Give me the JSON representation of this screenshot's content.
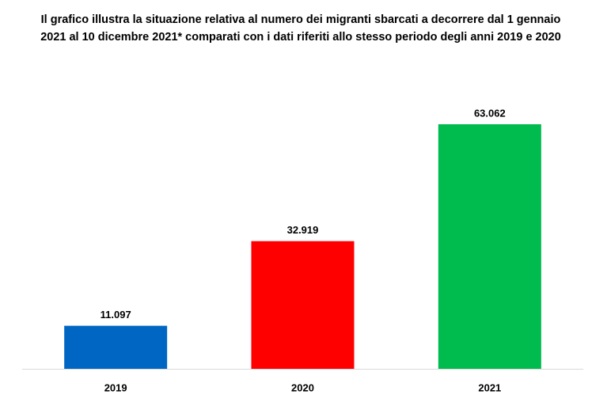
{
  "chart_data": {
    "type": "bar",
    "title": "Il grafico illustra la situazione relativa al numero dei migranti sbarcati a decorrere dal 1 gennaio 2021 al 10 dicembre 2021* comparati con i dati riferiti allo stesso periodo degli anni 2019  e 2020",
    "categories": [
      "2019",
      "2020",
      "2021"
    ],
    "values": [
      11097,
      32919,
      63062
    ],
    "value_labels": [
      "11.097",
      "32.919",
      "63.062"
    ],
    "colors": [
      "#0066c4",
      "#ff0000",
      "#00bb4e"
    ]
  }
}
